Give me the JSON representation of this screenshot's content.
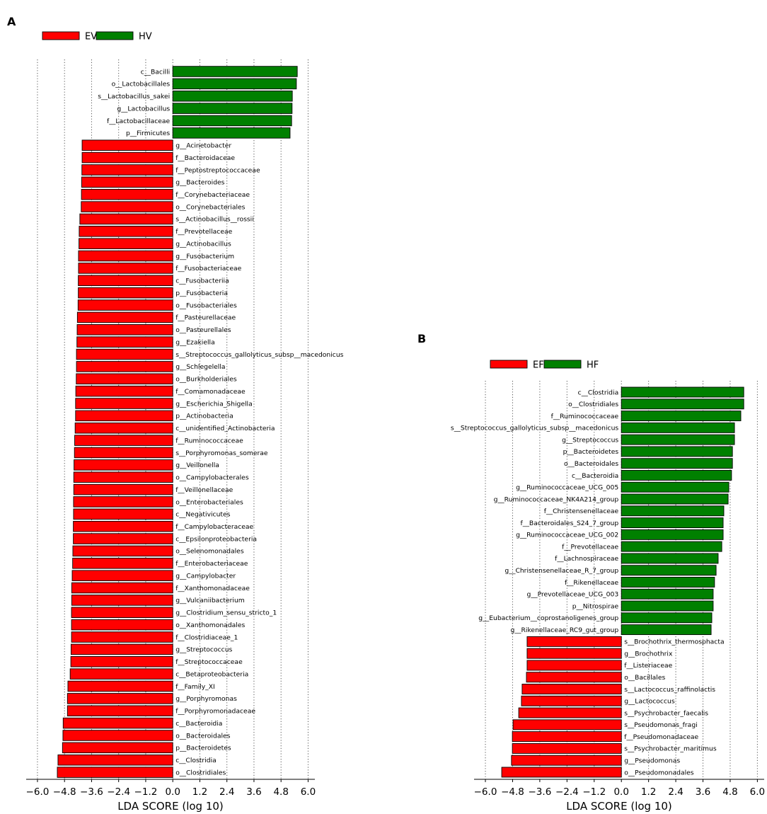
{
  "chart_data": [
    {
      "panel": "A",
      "type": "bar",
      "orientation": "horizontal",
      "xlabel": "LDA SCORE (log 10)",
      "xlim": [
        -6.5,
        6.3
      ],
      "xticks": [
        -6.0,
        -4.8,
        -3.6,
        -2.4,
        -1.2,
        0.0,
        1.2,
        2.4,
        3.6,
        4.8,
        6.0
      ],
      "xtick_labels": [
        "−6.0",
        "−4.8",
        "−3.6",
        "−2.4",
        "−1.2",
        "0.0",
        "1.2",
        "2.4",
        "3.6",
        "4.8",
        "6.0"
      ],
      "grid": true,
      "legend": {
        "placement": "top-left",
        "entries": [
          {
            "name": "EV",
            "color": "#ff0000"
          },
          {
            "name": "HV",
            "color": "#008000"
          }
        ]
      },
      "bars": [
        {
          "label": "c__Bacilli",
          "value": 5.52,
          "group": "HV"
        },
        {
          "label": "o__Lactobacillales",
          "value": 5.48,
          "group": "HV"
        },
        {
          "label": "s__Lactobacillus_sakei",
          "value": 5.3,
          "group": "HV"
        },
        {
          "label": "g__Lactobacillus",
          "value": 5.29,
          "group": "HV"
        },
        {
          "label": "f__Lactobacillaceae",
          "value": 5.27,
          "group": "HV"
        },
        {
          "label": "p__Firmicutes",
          "value": 5.2,
          "group": "HV"
        },
        {
          "label": "g__Acinetobacter",
          "value": -4.02,
          "group": "EV"
        },
        {
          "label": "f__Bacteroidaceae",
          "value": -4.02,
          "group": "EV"
        },
        {
          "label": "f__Peptostreptococcaceae",
          "value": -4.03,
          "group": "EV"
        },
        {
          "label": "g__Bacteroides",
          "value": -4.04,
          "group": "EV"
        },
        {
          "label": "f__Corynebacteriaceae",
          "value": -4.05,
          "group": "EV"
        },
        {
          "label": "o__Corynebacteriales",
          "value": -4.06,
          "group": "EV"
        },
        {
          "label": "s__Actinobacillus__rossii",
          "value": -4.12,
          "group": "EV"
        },
        {
          "label": "f__Prevotellaceae",
          "value": -4.15,
          "group": "EV"
        },
        {
          "label": "g__Actinobacillus",
          "value": -4.16,
          "group": "EV"
        },
        {
          "label": "g__Fusobacterium",
          "value": -4.18,
          "group": "EV"
        },
        {
          "label": "f__Fusobacteriaceae",
          "value": -4.18,
          "group": "EV"
        },
        {
          "label": "c__Fusobacteriia",
          "value": -4.19,
          "group": "EV"
        },
        {
          "label": "p__Fusobacteria",
          "value": -4.19,
          "group": "EV"
        },
        {
          "label": "o__Fusobacteriales",
          "value": -4.2,
          "group": "EV"
        },
        {
          "label": "f__Pasteurellaceae",
          "value": -4.23,
          "group": "EV"
        },
        {
          "label": "o__Pasteurellales",
          "value": -4.24,
          "group": "EV"
        },
        {
          "label": "g__Ezakiella",
          "value": -4.25,
          "group": "EV"
        },
        {
          "label": "s__Streptococcus_gallolyticus_subsp__macedonicus",
          "value": -4.27,
          "group": "EV"
        },
        {
          "label": "g__Schlegelella",
          "value": -4.27,
          "group": "EV"
        },
        {
          "label": "o__Burkholderiales",
          "value": -4.28,
          "group": "EV"
        },
        {
          "label": "f__Comamonadaceae",
          "value": -4.3,
          "group": "EV"
        },
        {
          "label": "g__Escherichia_Shigella",
          "value": -4.31,
          "group": "EV"
        },
        {
          "label": "p__Actinobacteria",
          "value": -4.31,
          "group": "EV"
        },
        {
          "label": "c__unidentified_Actinobacteria",
          "value": -4.33,
          "group": "EV"
        },
        {
          "label": "f__Ruminococcaceae",
          "value": -4.35,
          "group": "EV"
        },
        {
          "label": "s__Porphyromonas_somerae",
          "value": -4.36,
          "group": "EV"
        },
        {
          "label": "g__Veillonella",
          "value": -4.38,
          "group": "EV"
        },
        {
          "label": "o__Campylobacterales",
          "value": -4.39,
          "group": "EV"
        },
        {
          "label": "f__Veillonellaceae",
          "value": -4.39,
          "group": "EV"
        },
        {
          "label": "o__Enterobacteriales",
          "value": -4.4,
          "group": "EV"
        },
        {
          "label": "c__Negativicutes",
          "value": -4.4,
          "group": "EV"
        },
        {
          "label": "f__Campylobacteraceae",
          "value": -4.41,
          "group": "EV"
        },
        {
          "label": "c__Epsilonproteobacteria",
          "value": -4.41,
          "group": "EV"
        },
        {
          "label": "o__Selenomonadales",
          "value": -4.43,
          "group": "EV"
        },
        {
          "label": "f__Enterobacteriaceae",
          "value": -4.44,
          "group": "EV"
        },
        {
          "label": "g__Campylobacter",
          "value": -4.46,
          "group": "EV"
        },
        {
          "label": "f__Xanthomonadaceae",
          "value": -4.48,
          "group": "EV"
        },
        {
          "label": "g__Vulcaniibacterium",
          "value": -4.48,
          "group": "EV"
        },
        {
          "label": "g__Clostridium_sensu_stricto_1",
          "value": -4.49,
          "group": "EV"
        },
        {
          "label": "o__Xanthomonadales",
          "value": -4.49,
          "group": "EV"
        },
        {
          "label": "f__Clostridiaceae_1",
          "value": -4.49,
          "group": "EV"
        },
        {
          "label": "g__Streptococcus",
          "value": -4.51,
          "group": "EV"
        },
        {
          "label": "f__Streptococcaceae",
          "value": -4.52,
          "group": "EV"
        },
        {
          "label": "c__Betaproteobacteria",
          "value": -4.55,
          "group": "EV"
        },
        {
          "label": "f__Family_XI",
          "value": -4.65,
          "group": "EV"
        },
        {
          "label": "g__Porphyromonas",
          "value": -4.67,
          "group": "EV"
        },
        {
          "label": "f__Porphyromonadaceae",
          "value": -4.67,
          "group": "EV"
        },
        {
          "label": "c__Bacteroidia",
          "value": -4.86,
          "group": "EV"
        },
        {
          "label": "o__Bacteroidales",
          "value": -4.87,
          "group": "EV"
        },
        {
          "label": "p__Bacteroidetes",
          "value": -4.89,
          "group": "EV"
        },
        {
          "label": "c__Clostridia",
          "value": -5.09,
          "group": "EV"
        },
        {
          "label": "o__Clostridiales",
          "value": -5.12,
          "group": "EV"
        }
      ]
    },
    {
      "panel": "B",
      "type": "bar",
      "orientation": "horizontal",
      "xlabel": "LDA SCORE (log 10)",
      "xlim": [
        -6.5,
        6.3
      ],
      "xticks": [
        -6.0,
        -4.8,
        -3.6,
        -2.4,
        -1.2,
        0.0,
        1.2,
        2.4,
        3.6,
        4.8,
        6.0
      ],
      "xtick_labels": [
        "−6.0",
        "−4.8",
        "−3.6",
        "−2.4",
        "−1.2",
        "0.0",
        "1.2",
        "2.4",
        "3.6",
        "4.8",
        "6.0"
      ],
      "grid": true,
      "legend": {
        "placement": "top-left",
        "entries": [
          {
            "name": "EF",
            "color": "#ff0000"
          },
          {
            "name": "HF",
            "color": "#008000"
          }
        ]
      },
      "bars": [
        {
          "label": "c__Clostridia",
          "value": 5.4,
          "group": "HF"
        },
        {
          "label": "o__Clostridiales",
          "value": 5.4,
          "group": "HF"
        },
        {
          "label": "f__Ruminococcaceae",
          "value": 5.27,
          "group": "HF"
        },
        {
          "label": "s__Streptococcus_gallolyticus_subsp__macedonicus",
          "value": 4.99,
          "group": "HF"
        },
        {
          "label": "g__Streptococcus",
          "value": 4.99,
          "group": "HF"
        },
        {
          "label": "p__Bacteroidetes",
          "value": 4.9,
          "group": "HF"
        },
        {
          "label": "o__Bacteroidales",
          "value": 4.9,
          "group": "HF"
        },
        {
          "label": "c__Bacteroidia",
          "value": 4.86,
          "group": "HF"
        },
        {
          "label": "g__Ruminococcaceae_UCG_005",
          "value": 4.74,
          "group": "HF"
        },
        {
          "label": "g__Ruminococcaceae_NK4A214_group",
          "value": 4.71,
          "group": "HF"
        },
        {
          "label": "f__Christensenellaceae",
          "value": 4.52,
          "group": "HF"
        },
        {
          "label": "f__Bacteroidales_S24_7_group",
          "value": 4.49,
          "group": "HF"
        },
        {
          "label": "g__Ruminococcaceae_UCG_002",
          "value": 4.49,
          "group": "HF"
        },
        {
          "label": "f__Prevotellaceae",
          "value": 4.43,
          "group": "HF"
        },
        {
          "label": "f__Lachnospiraceae",
          "value": 4.27,
          "group": "HF"
        },
        {
          "label": "g__Christensenellaceae_R_7_group",
          "value": 4.18,
          "group": "HF"
        },
        {
          "label": "f__Rikenellaceae",
          "value": 4.11,
          "group": "HF"
        },
        {
          "label": "g__Prevotellaceae_UCG_003",
          "value": 4.05,
          "group": "HF"
        },
        {
          "label": "p__Nitrospirae",
          "value": 4.05,
          "group": "HF"
        },
        {
          "label": "g__Eubacterium__coprostanoligenes_group",
          "value": 3.99,
          "group": "HF"
        },
        {
          "label": "g__Rikenellaceae_RC9_gut_group",
          "value": 3.96,
          "group": "HF"
        },
        {
          "label": "s__Brochothrix_thermosphacta",
          "value": -4.16,
          "group": "EF"
        },
        {
          "label": "g__Brochothrix",
          "value": -4.16,
          "group": "EF"
        },
        {
          "label": "f__Listeriaceae",
          "value": -4.16,
          "group": "EF"
        },
        {
          "label": "o__Bacillales",
          "value": -4.19,
          "group": "EF"
        },
        {
          "label": "s__Lactococcus_raffinolactis",
          "value": -4.38,
          "group": "EF"
        },
        {
          "label": "g__Lactococcus",
          "value": -4.41,
          "group": "EF"
        },
        {
          "label": "s__Psychrobacter_faecalis",
          "value": -4.53,
          "group": "EF"
        },
        {
          "label": "s__Pseudomonas_fragi",
          "value": -4.78,
          "group": "EF"
        },
        {
          "label": "f__Pseudomonadaceae",
          "value": -4.81,
          "group": "EF"
        },
        {
          "label": "s__Psychrobacter_maritimus",
          "value": -4.81,
          "group": "EF"
        },
        {
          "label": "g__Pseudomonas",
          "value": -4.85,
          "group": "EF"
        },
        {
          "label": "o__Pseudomonadales",
          "value": -5.28,
          "group": "EF"
        }
      ]
    }
  ]
}
